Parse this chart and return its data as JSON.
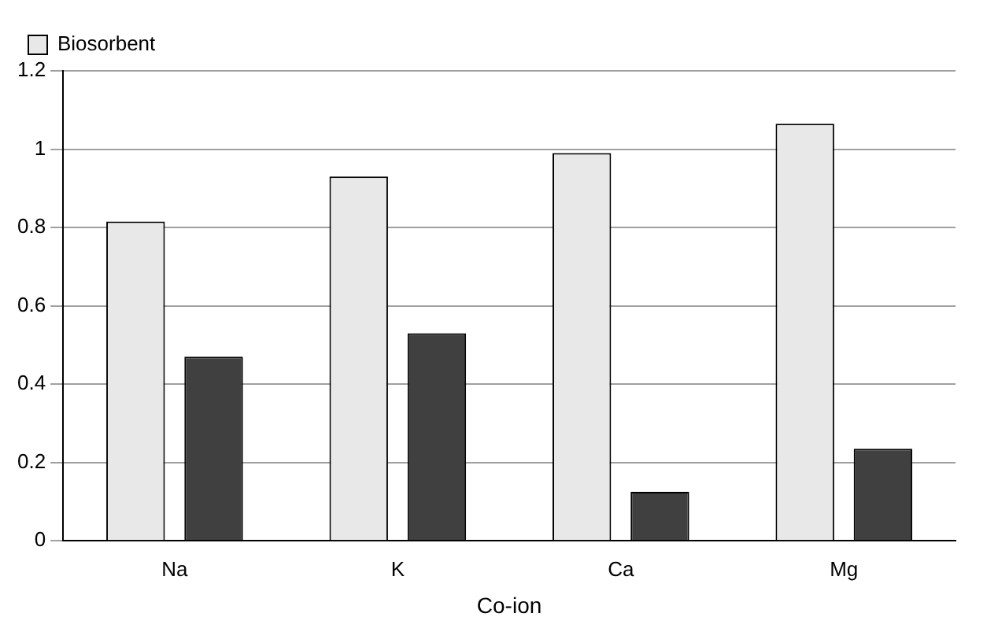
{
  "chart_data": {
    "type": "bar",
    "xlabel": "Co-ion",
    "categories": [
      "Na",
      "K",
      "Ca",
      "Mg"
    ],
    "series": [
      {
        "name": "Biosorbent",
        "color": "#e8e8e8",
        "values": [
          0.815,
          0.93,
          0.99,
          1.065
        ]
      },
      {
        "color": "#404040",
        "values": [
          0.47,
          0.53,
          0.125,
          0.235
        ]
      }
    ],
    "ylim": [
      0,
      1.2
    ],
    "yticks": [
      0,
      0.2,
      0.4,
      0.6,
      0.8,
      1,
      1.2
    ],
    "grid": "y",
    "legend": "top left"
  }
}
